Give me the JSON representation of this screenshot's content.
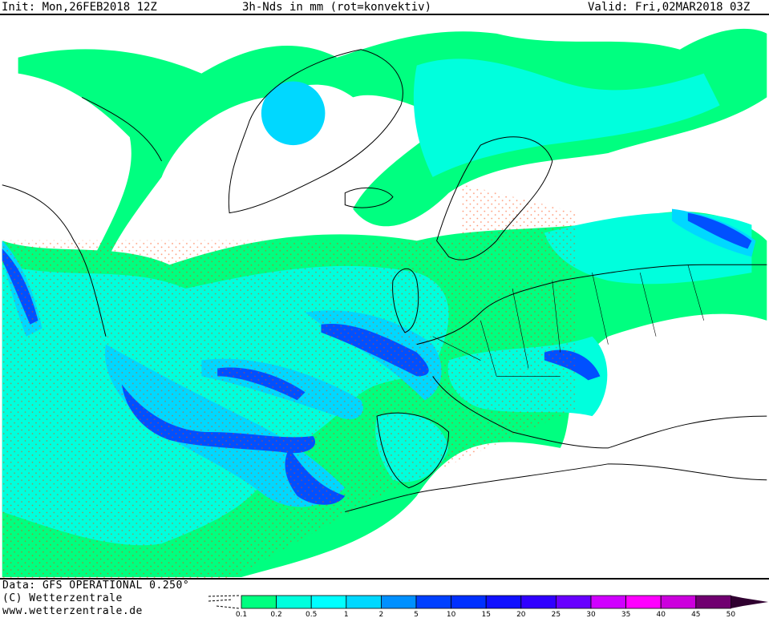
{
  "header": {
    "init": "Init: Mon,26FEB2018 12Z",
    "title": "3h-Nds in mm (rot=konvektiv)",
    "valid": "Valid: Fri,02MAR2018 03Z"
  },
  "footer": {
    "data_source": "Data: GFS OPERATIONAL 0.250°",
    "copyright": "(C) Wetterzentrale",
    "url": "www.wetterzentrale.de"
  },
  "legend": {
    "unit": "mm",
    "ticks": [
      "0.1",
      "0.2",
      "0.5",
      "1",
      "2",
      "5",
      "10",
      "15",
      "20",
      "25",
      "30",
      "35",
      "40",
      "45",
      "50"
    ],
    "colors": [
      "#00ff80",
      "#00ffdd",
      "#00ffff",
      "#00d8ff",
      "#0090ff",
      "#0040ff",
      "#0030ff",
      "#1010ff",
      "#3000ff",
      "#6800ff",
      "#d000ff",
      "#ff00ff",
      "#cc00dd",
      "#700070",
      "#300030"
    ]
  },
  "map": {
    "convective_marker_color": "#ff4000",
    "coastline_color": "#000000"
  }
}
